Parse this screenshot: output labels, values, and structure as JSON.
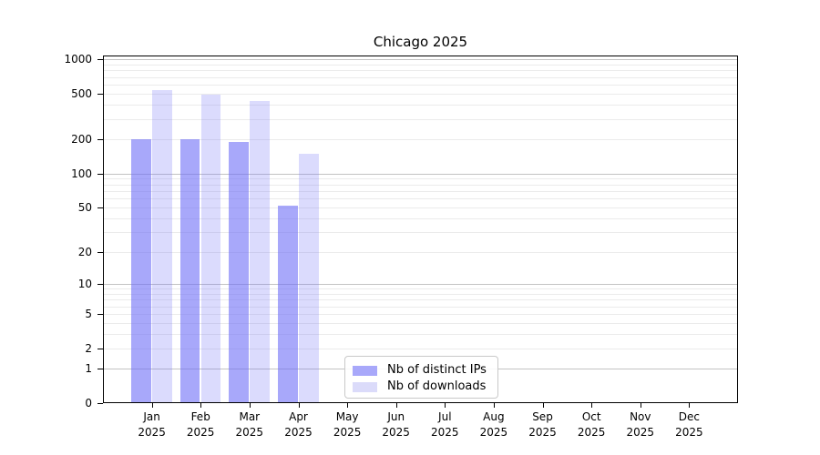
{
  "title": "Chicago 2025",
  "legend": {
    "items": [
      {
        "label": "Nb of distinct IPs",
        "color": "#a8a8fa"
      },
      {
        "label": "Nb of downloads",
        "color": "#dbdbfa"
      }
    ]
  },
  "axes": {
    "x_months": [
      "Jan",
      "Feb",
      "Mar",
      "Apr",
      "May",
      "Jun",
      "Jul",
      "Aug",
      "Sep",
      "Oct",
      "Nov",
      "Dec"
    ],
    "x_year": "2025",
    "y_ticks": [
      0,
      1,
      2,
      5,
      10,
      20,
      50,
      100,
      200,
      500,
      1000
    ]
  },
  "chart_data": {
    "type": "bar",
    "title": "Chicago 2025",
    "categories": [
      "Jan 2025",
      "Feb 2025",
      "Mar 2025",
      "Apr 2025",
      "May 2025",
      "Jun 2025",
      "Jul 2025",
      "Aug 2025",
      "Sep 2025",
      "Oct 2025",
      "Nov 2025",
      "Dec 2025"
    ],
    "series": [
      {
        "name": "Nb of distinct IPs",
        "color": "#a8a8fa",
        "fill_rgba": "rgba(110,110,247,0.6)",
        "values": [
          200,
          200,
          190,
          52,
          0,
          0,
          0,
          0,
          0,
          0,
          0,
          0
        ]
      },
      {
        "name": "Nb of downloads",
        "color": "#dbdbfa",
        "fill_rgba": "rgba(110,110,247,0.25)",
        "values": [
          535,
          490,
          430,
          150,
          0,
          0,
          0,
          0,
          0,
          0,
          0,
          0
        ]
      }
    ],
    "xlabel": "",
    "ylabel": "",
    "y_scale": "log10(1+y)",
    "y_ticks": [
      0,
      1,
      2,
      5,
      10,
      20,
      50,
      100,
      200,
      500,
      1000
    ],
    "y_major_grid": [
      1,
      10,
      100,
      1000
    ],
    "ylim": [
      0,
      1080
    ],
    "grid": "horizontal minor log subdivisions + darker decade lines",
    "legend_position": "lower center, inside plot"
  }
}
